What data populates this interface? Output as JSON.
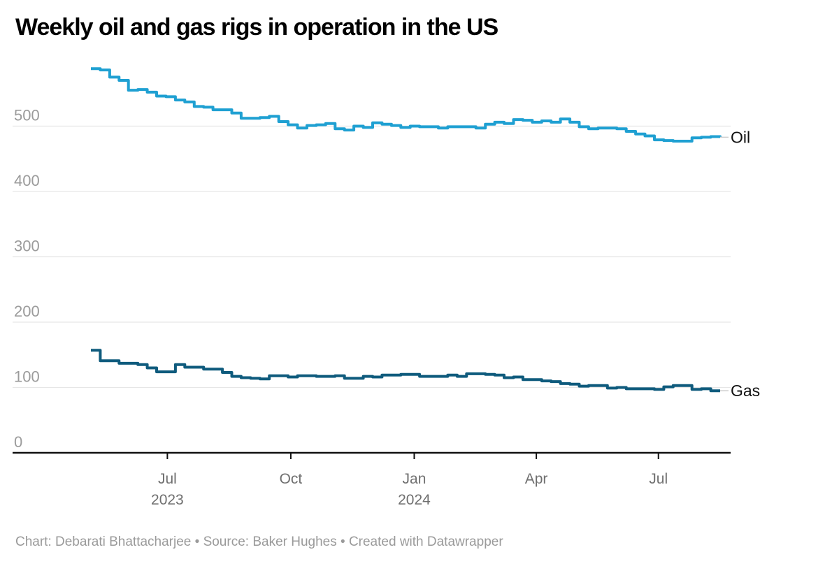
{
  "footer": {
    "text": "Chart: Debarati Bhattacharjee • Source: Baker Hughes • Created with Datawrapper"
  },
  "chart_data": {
    "type": "line",
    "step": true,
    "title": "Weekly oil and gas rigs in operation in the US",
    "xlabel": "",
    "ylabel": "",
    "grid": true,
    "legend_position": "line-end-labels",
    "ylim": [
      0,
      597
    ],
    "xlim": [
      "2023-05-05",
      "2024-08-16"
    ],
    "yticks": [
      0,
      100,
      200,
      300,
      400,
      500
    ],
    "xticks": [
      {
        "label": "Jul",
        "sublabel": "2023",
        "date": "2023-07-01"
      },
      {
        "label": "Oct",
        "sublabel": "",
        "date": "2023-10-01"
      },
      {
        "label": "Jan",
        "sublabel": "2024",
        "date": "2024-01-01"
      },
      {
        "label": "Apr",
        "sublabel": "",
        "date": "2024-04-01"
      },
      {
        "label": "Jul",
        "sublabel": "",
        "date": "2024-07-01"
      }
    ],
    "x": [
      "2023-05-05",
      "2023-05-12",
      "2023-05-19",
      "2023-05-26",
      "2023-06-02",
      "2023-06-09",
      "2023-06-16",
      "2023-06-23",
      "2023-06-30",
      "2023-07-07",
      "2023-07-14",
      "2023-07-21",
      "2023-07-28",
      "2023-08-04",
      "2023-08-11",
      "2023-08-18",
      "2023-08-25",
      "2023-09-01",
      "2023-09-08",
      "2023-09-15",
      "2023-09-22",
      "2023-09-29",
      "2023-10-06",
      "2023-10-13",
      "2023-10-20",
      "2023-10-27",
      "2023-11-03",
      "2023-11-10",
      "2023-11-17",
      "2023-11-24",
      "2023-12-01",
      "2023-12-08",
      "2023-12-15",
      "2023-12-22",
      "2023-12-29",
      "2024-01-05",
      "2024-01-12",
      "2024-01-19",
      "2024-01-26",
      "2024-02-02",
      "2024-02-09",
      "2024-02-16",
      "2024-02-23",
      "2024-03-01",
      "2024-03-08",
      "2024-03-15",
      "2024-03-22",
      "2024-03-29",
      "2024-04-05",
      "2024-04-12",
      "2024-04-19",
      "2024-04-26",
      "2024-05-03",
      "2024-05-10",
      "2024-05-17",
      "2024-05-24",
      "2024-05-31",
      "2024-06-07",
      "2024-06-14",
      "2024-06-21",
      "2024-06-28",
      "2024-07-05",
      "2024-07-12",
      "2024-07-19",
      "2024-07-26",
      "2024-08-02",
      "2024-08-09",
      "2024-08-16"
    ],
    "series": [
      {
        "name": "Oil",
        "color": "#1fa0d2",
        "values": [
          588,
          586,
          575,
          570,
          555,
          556,
          552,
          546,
          545,
          540,
          537,
          530,
          529,
          525,
          525,
          520,
          512,
          512,
          513,
          515,
          507,
          502,
          497,
          501,
          502,
          504,
          496,
          494,
          500,
          498,
          505,
          503,
          501,
          498,
          500,
          499,
          499,
          497,
          499,
          499,
          499,
          497,
          503,
          506,
          504,
          510,
          509,
          506,
          508,
          506,
          511,
          506,
          499,
          496,
          497,
          497,
          496,
          492,
          488,
          485,
          479,
          478,
          477,
          477,
          482,
          483,
          484,
          483
        ]
      },
      {
        "name": "Gas",
        "color": "#0f5b7d",
        "values": [
          157,
          141,
          141,
          137,
          137,
          135,
          130,
          124,
          124,
          135,
          131,
          131,
          128,
          128,
          123,
          117,
          115,
          114,
          113,
          118,
          118,
          116,
          118,
          118,
          117,
          117,
          118,
          114,
          114,
          117,
          116,
          119,
          119,
          120,
          120,
          117,
          117,
          117,
          119,
          117,
          121,
          121,
          120,
          119,
          115,
          116,
          112,
          112,
          110,
          109,
          106,
          105,
          102,
          103,
          103,
          99,
          100,
          98,
          98,
          98,
          97,
          101,
          103,
          103,
          97,
          98,
          95,
          95
        ]
      }
    ],
    "colors": {
      "axis": "#111111",
      "gridline": "#e6e6e6",
      "y_tick_label": "#9b9b9b",
      "x_tick_label": "#6f6f6f",
      "series_label": "#111111",
      "label_connector": "#cccccc"
    }
  }
}
